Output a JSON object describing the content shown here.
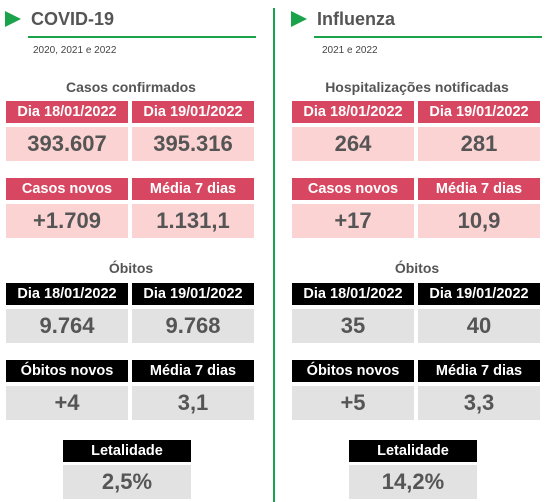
{
  "covid": {
    "title": "COVID-19",
    "years": "2020, 2021 e 2022",
    "cases_title": "Casos confirmados",
    "cases": {
      "h1": "Dia 18/01/2022",
      "h2": "Dia 19/01/2022",
      "v1": "393.607",
      "v2": "395.316"
    },
    "new": {
      "h1": "Casos novos",
      "h2": "Média 7 dias",
      "v1": "+1.709",
      "v2": "1.131,1"
    },
    "deaths_title": "Óbitos",
    "deaths": {
      "h1": "Dia 18/01/2022",
      "h2": "Dia 19/01/2022",
      "v1": "9.764",
      "v2": "9.768"
    },
    "new_deaths": {
      "h1": "Óbitos novos",
      "h2": "Média 7 dias",
      "v1": "+4",
      "v2": "3,1"
    },
    "lethality": {
      "h": "Letalidade",
      "v": "2,5%"
    }
  },
  "flu": {
    "title": "Influenza",
    "years": "2021 e 2022",
    "cases_title": "Hospitalizações notificadas",
    "cases": {
      "h1": "Dia 18/01/2022",
      "h2": "Dia 19/01/2022",
      "v1": "264",
      "v2": "281"
    },
    "new": {
      "h1": "Casos novos",
      "h2": "Média 7 dias",
      "v1": "+17",
      "v2": "10,9"
    },
    "deaths_title": "Óbitos",
    "deaths": {
      "h1": "Dia 18/01/2022",
      "h2": "Dia 19/01/2022",
      "v1": "35",
      "v2": "40"
    },
    "new_deaths": {
      "h1": "Óbitos novos",
      "h2": "Média 7 dias",
      "v1": "+5",
      "v2": "3,3"
    },
    "lethality": {
      "h": "Letalidade",
      "v": "14,2%"
    }
  },
  "colors": {
    "accent_green": "#1aa34a",
    "header_red": "#d74761",
    "cell_pink": "#fbd3d2",
    "header_black": "#000000",
    "cell_grey": "#e2e2e2"
  },
  "icons": [
    "triangle-right-icon"
  ]
}
